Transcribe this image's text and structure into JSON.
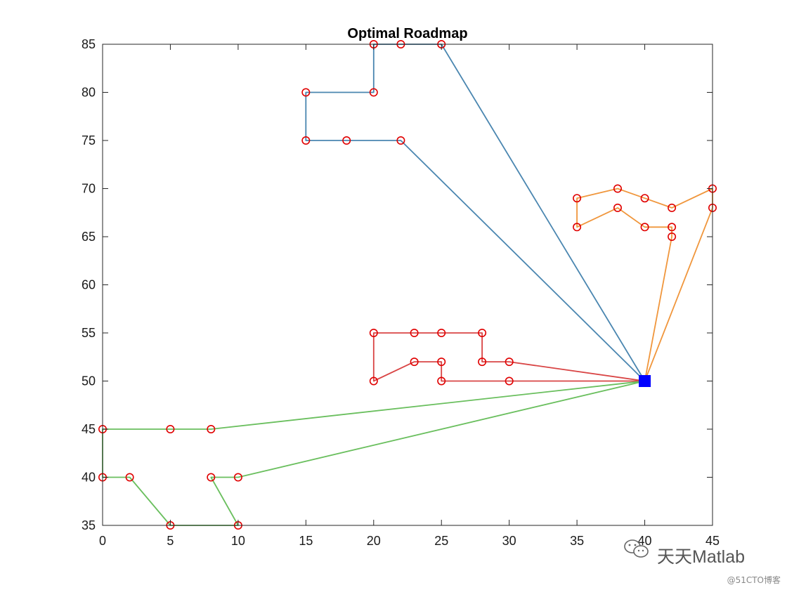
{
  "chart_data": {
    "type": "line",
    "title": "Optimal Roadmap",
    "xlabel": "",
    "ylabel": "",
    "xlim": [
      0,
      45
    ],
    "ylim": [
      35,
      85
    ],
    "xticks": [
      0,
      5,
      10,
      15,
      20,
      25,
      30,
      35,
      40,
      45
    ],
    "yticks": [
      35,
      40,
      45,
      50,
      55,
      60,
      65,
      70,
      75,
      80,
      85
    ],
    "grid": false,
    "depot": {
      "x": 40,
      "y": 50,
      "color": "#0000ff",
      "marker": "square"
    },
    "series": [
      {
        "color": "#4a86b0",
        "points": [
          [
            40,
            50
          ],
          [
            22,
            75
          ],
          [
            18,
            75
          ],
          [
            15,
            75
          ],
          [
            15,
            80
          ],
          [
            20,
            80
          ],
          [
            20,
            85
          ],
          [
            22,
            85
          ],
          [
            25,
            85
          ],
          [
            40,
            50
          ]
        ]
      },
      {
        "color": "#f0963c",
        "points": [
          [
            40,
            50
          ],
          [
            42,
            65
          ],
          [
            42,
            66
          ],
          [
            40,
            66
          ],
          [
            38,
            68
          ],
          [
            35,
            66
          ],
          [
            35,
            69
          ],
          [
            38,
            70
          ],
          [
            40,
            69
          ],
          [
            42,
            68
          ],
          [
            45,
            70
          ],
          [
            45,
            68
          ],
          [
            40,
            50
          ]
        ]
      },
      {
        "color": "#d94545",
        "points": [
          [
            40,
            50
          ],
          [
            30,
            52
          ],
          [
            28,
            52
          ],
          [
            28,
            55
          ],
          [
            25,
            55
          ],
          [
            23,
            55
          ],
          [
            20,
            55
          ],
          [
            20,
            50
          ],
          [
            23,
            52
          ],
          [
            25,
            52
          ],
          [
            25,
            50
          ],
          [
            30,
            50
          ],
          [
            40,
            50
          ]
        ]
      },
      {
        "color": "#6abf5e",
        "points": [
          [
            40,
            50
          ],
          [
            8,
            45
          ],
          [
            5,
            45
          ],
          [
            0,
            45
          ],
          [
            0,
            40
          ],
          [
            2,
            40
          ],
          [
            5,
            35
          ],
          [
            10,
            35
          ],
          [
            8,
            40
          ],
          [
            10,
            40
          ],
          [
            40,
            50
          ]
        ]
      }
    ],
    "marker": {
      "shape": "circle",
      "color": "#e00000"
    }
  },
  "watermark": {
    "main": "天天Matlab",
    "small": "@51CTO博客"
  }
}
